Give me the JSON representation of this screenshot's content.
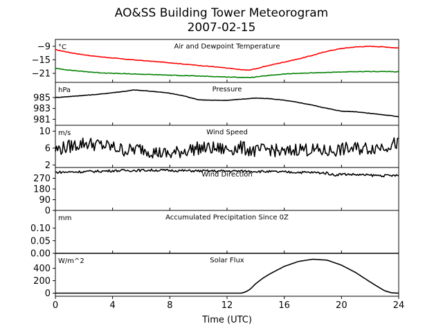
{
  "figure": {
    "title": "AO&SS Building Tower Meteorogram",
    "subtitle": "2007-02-15",
    "xlabel": "Time (UTC)"
  },
  "colors": {
    "temperature": "#ff0000",
    "dewpoint": "#008000",
    "line": "#000000",
    "frame": "#000000",
    "background": "#ffffff"
  },
  "chart_data": {
    "type": "line",
    "x_axis": {
      "label": "Time (UTC)",
      "range": [
        0,
        24
      ],
      "ticks": [
        0,
        4,
        8,
        12,
        16,
        20,
        24
      ]
    },
    "panels": [
      {
        "id": "temperature",
        "title": "Air and Dewpoint Temperature",
        "unit": "°C",
        "ylim": [
          -25,
          -6
        ],
        "yticks": [
          -21,
          -15,
          -9
        ],
        "ytick_labels": [
          "−21",
          "−15",
          "−9"
        ],
        "series": [
          {
            "color": "#ff0000",
            "x": [
              0,
              1,
              2,
              3,
              4,
              5,
              6,
              7,
              8,
              9,
              10,
              11,
              12,
              13,
              13.5,
              14,
              15,
              16,
              17,
              18,
              19,
              20,
              21,
              22,
              23,
              24
            ],
            "y": [
              -10.5,
              -11.8,
              -12.8,
              -13.6,
              -14.2,
              -14.8,
              -15.3,
              -15.8,
              -16.3,
              -16.9,
              -17.5,
              -18.0,
              -18.7,
              -19.4,
              -19.6,
              -19.0,
              -17.4,
              -16.0,
              -14.6,
              -13.0,
              -11.2,
              -10.0,
              -9.3,
              -9.0,
              -9.3,
              -9.8
            ]
          },
          {
            "color": "#008000",
            "x": [
              0,
              1,
              2,
              3,
              4,
              5,
              6,
              7,
              8,
              9,
              10,
              11,
              12,
              13,
              13.5,
              14,
              15,
              16,
              17,
              18,
              19,
              20,
              21,
              22,
              23,
              24
            ],
            "y": [
              -18.8,
              -19.6,
              -20.2,
              -20.7,
              -21.0,
              -21.2,
              -21.4,
              -21.6,
              -21.8,
              -22.0,
              -22.2,
              -22.4,
              -22.6,
              -22.8,
              -22.9,
              -22.6,
              -21.9,
              -21.3,
              -21.0,
              -20.8,
              -20.6,
              -20.4,
              -20.3,
              -20.2,
              -20.2,
              -20.3
            ]
          }
        ]
      },
      {
        "id": "pressure",
        "title": "Pressure",
        "unit": "hPa",
        "ylim": [
          979.9,
          987.8
        ],
        "yticks": [
          981,
          983,
          985
        ],
        "ytick_labels": [
          "981",
          "983",
          "985"
        ],
        "series": [
          {
            "color": "#000000",
            "x": [
              0,
              1,
              2,
              3,
              4,
              5,
              5.5,
              6,
              7,
              8,
              9,
              10,
              11,
              12,
              13,
              14,
              15,
              16,
              16.5,
              17,
              18,
              19,
              20,
              21,
              22,
              23,
              24
            ],
            "y": [
              985.0,
              985.2,
              985.4,
              985.6,
              985.9,
              986.2,
              986.4,
              986.3,
              986.1,
              985.8,
              985.3,
              984.6,
              984.5,
              984.5,
              984.7,
              984.9,
              984.8,
              984.5,
              984.3,
              984.1,
              983.6,
              983.0,
              982.5,
              982.4,
              982.1,
              981.8,
              981.5
            ]
          }
        ]
      },
      {
        "id": "wind-speed",
        "title": "Wind Speed",
        "unit": "m/s",
        "ylim": [
          1.4,
          11.4
        ],
        "yticks": [
          2,
          6,
          10
        ],
        "ytick_labels": [
          "2",
          "6",
          "10"
        ],
        "series": [
          {
            "color": "#000000",
            "x": [
              0,
              1,
              2,
              3,
              4,
              5,
              6,
              7,
              8,
              9,
              10,
              11,
              12,
              13,
              14,
              15,
              16,
              17,
              18,
              19,
              20,
              21,
              22,
              23,
              24
            ],
            "y": [
              5.6,
              6.4,
              7.2,
              6.8,
              6.2,
              5.4,
              5.9,
              5.0,
              4.5,
              5.4,
              6.0,
              5.9,
              5.7,
              6.1,
              5.2,
              5.8,
              4.8,
              5.9,
              5.5,
              5.2,
              5.7,
              5.9,
              6.0,
              6.5,
              7.2
            ]
          }
        ]
      },
      {
        "id": "wind-direction",
        "title": "Wind Direction",
        "unit": "",
        "ylim": [
          0,
          360
        ],
        "yticks": [
          0,
          90,
          180,
          270
        ],
        "ytick_labels": [
          "0",
          "90",
          "180",
          "270"
        ],
        "series": [
          {
            "color": "#000000",
            "x": [
              0,
              1,
              2,
              3,
              4,
              5,
              6,
              7,
              8,
              9,
              10,
              11,
              12,
              13,
              14,
              15,
              16,
              17,
              18,
              19,
              19.5,
              20,
              21,
              22,
              23,
              24
            ],
            "y": [
              320,
              322,
              325,
              328,
              333,
              335,
              336,
              337,
              335,
              333,
              331,
              330,
              330,
              329,
              328,
              325,
              322,
              320,
              318,
              313,
              296,
              305,
              300,
              295,
              292,
              292
            ]
          }
        ]
      },
      {
        "id": "precipitation",
        "title": "Accumulated Precipitation Since 0Z",
        "unit": "mm",
        "ylim": [
          0,
          0.17
        ],
        "yticks": [
          0.0,
          0.05,
          0.1
        ],
        "ytick_labels": [
          "0.00",
          "0.05",
          "0.10"
        ],
        "series": [
          {
            "color": "#000000",
            "x": [
              0,
              24
            ],
            "y": [
              0,
              0
            ]
          }
        ]
      },
      {
        "id": "solar-flux",
        "title": "Solar Flux",
        "unit": "W/m^2",
        "ylim": [
          -50,
          640
        ],
        "yticks": [
          0,
          200,
          400
        ],
        "ytick_labels": [
          "0",
          "200",
          "400"
        ],
        "series": [
          {
            "color": "#000000",
            "x": [
              0,
              12,
              13,
              13.3,
              13.6,
              14,
              14.5,
              15,
              16,
              17,
              18,
              19,
              20,
              21,
              22,
              23,
              23.5,
              24
            ],
            "y": [
              0,
              0,
              0,
              20,
              60,
              150,
              240,
              310,
              430,
              510,
              545,
              530,
              450,
              330,
              180,
              40,
              5,
              0
            ]
          }
        ]
      }
    ]
  }
}
